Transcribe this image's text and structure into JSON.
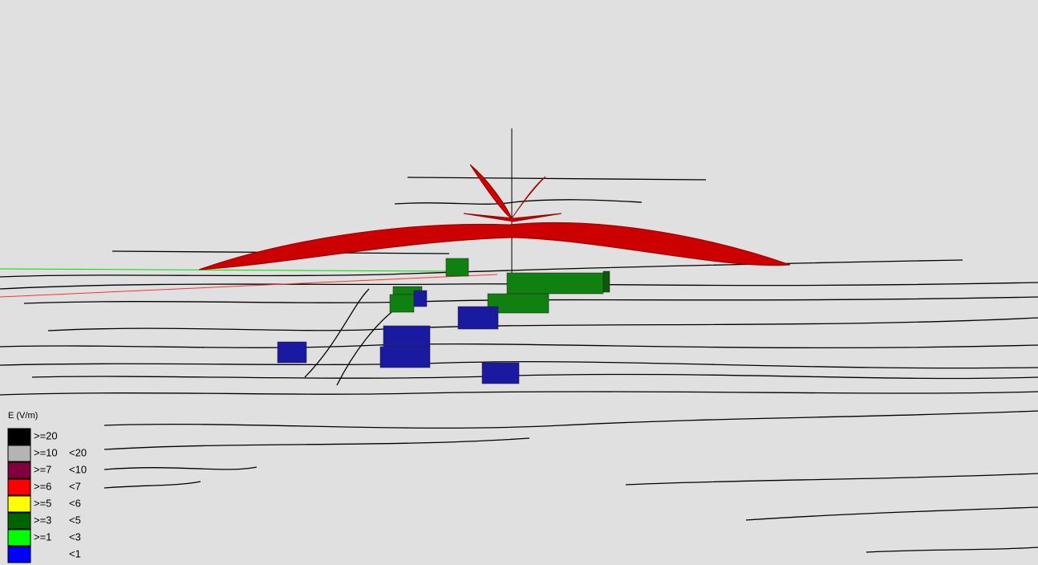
{
  "legend": {
    "title": "E (V/m)",
    "entries": [
      {
        "low": ">=20",
        "color": "#000000"
      },
      {
        "low": ">=10",
        "high": "<20",
        "color": "#b4b4b4"
      },
      {
        "low": ">=7",
        "high": "<10",
        "color": "#800040"
      },
      {
        "low": ">=6",
        "high": "<7",
        "color": "#ff0000"
      },
      {
        "low": ">=5",
        "high": "<6",
        "color": "#ffff00"
      },
      {
        "low": ">=3",
        "high": "<5",
        "color": "#006400"
      },
      {
        "low": ">=1",
        "high": "<3",
        "color": "#00ff00"
      },
      {
        "high": "<1",
        "color": "#0000ff"
      }
    ]
  }
}
